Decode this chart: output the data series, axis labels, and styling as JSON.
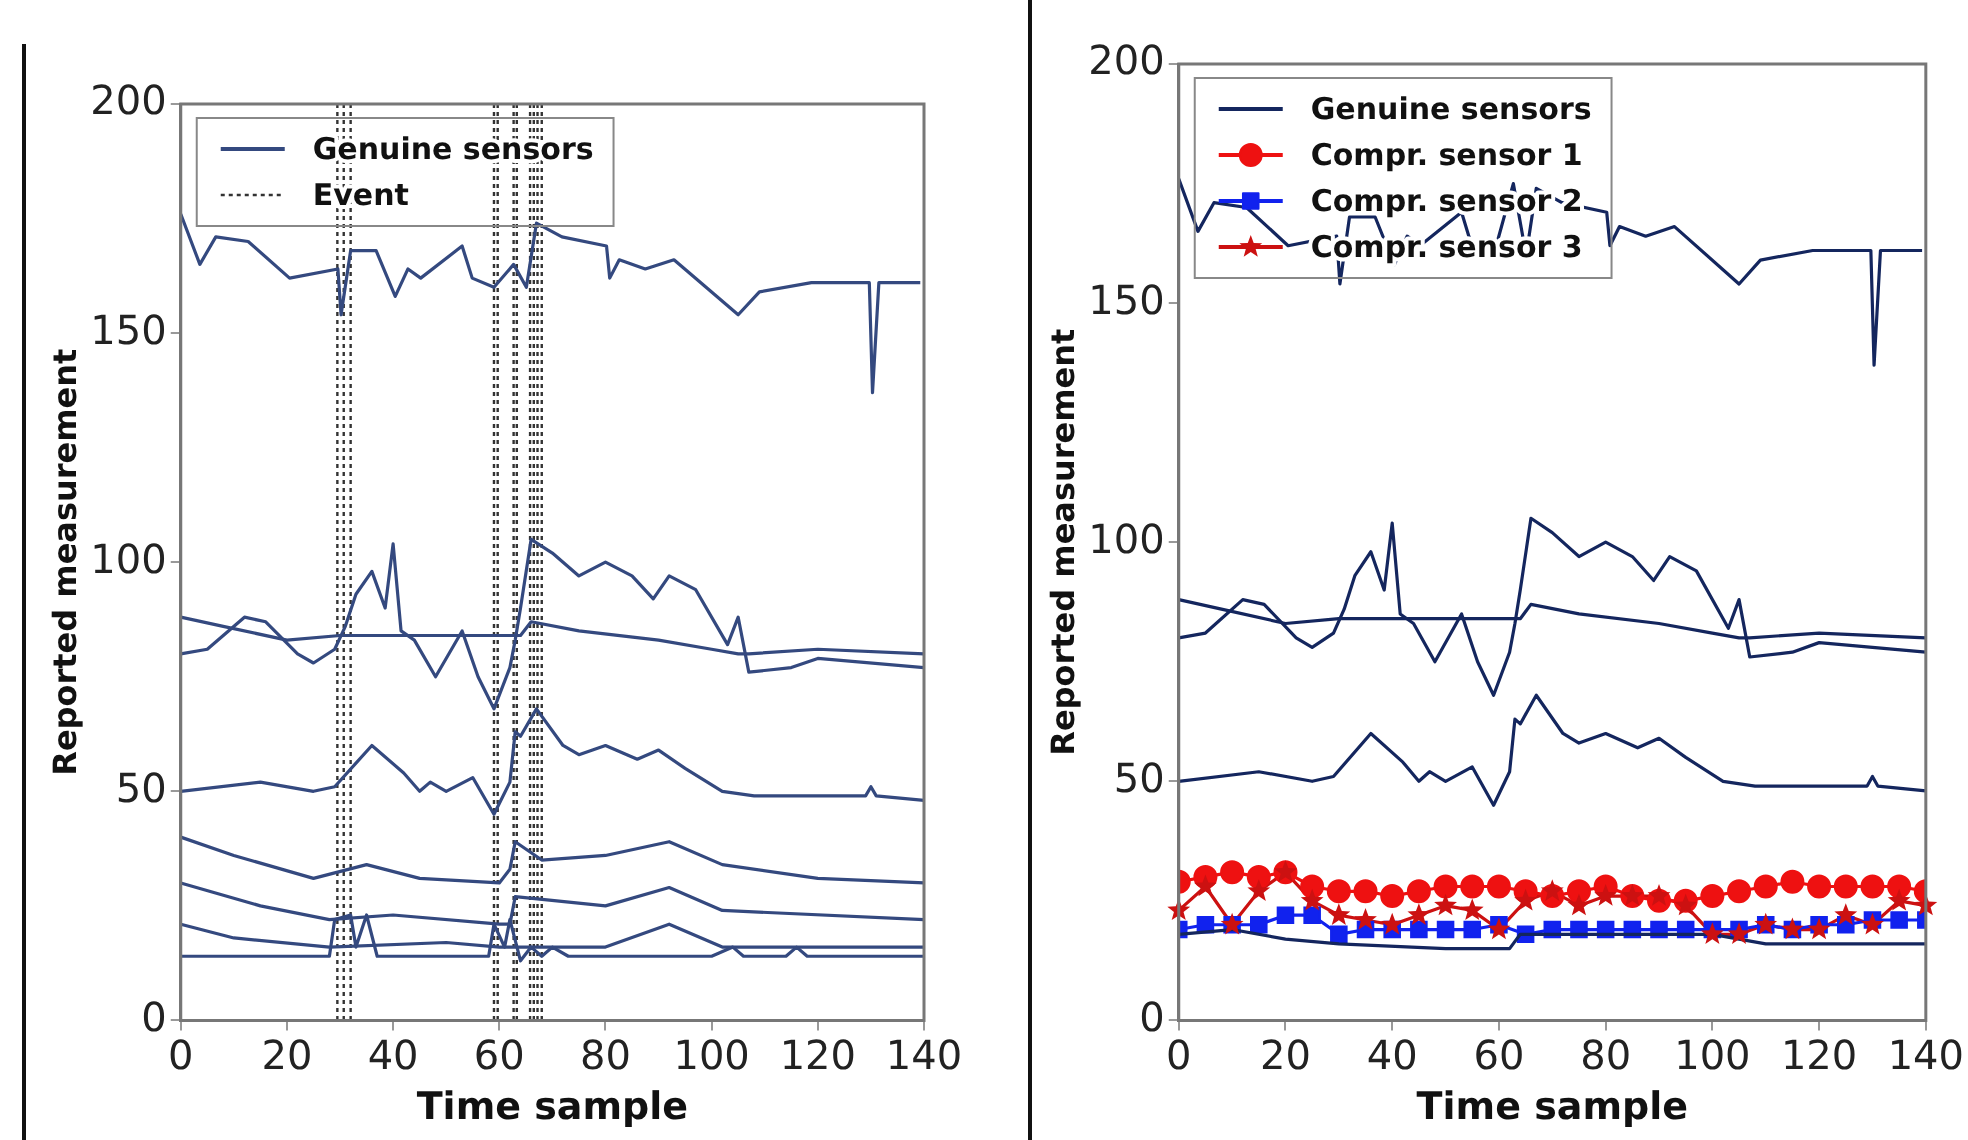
{
  "chart_data": [
    {
      "type": "line",
      "xlabel": "Time sample",
      "ylabel": "Reported measurement",
      "xlim": [
        0,
        140
      ],
      "xticks": [
        0,
        20,
        40,
        60,
        80,
        100,
        120,
        140
      ],
      "ylim": [
        0,
        200
      ],
      "yticks": [
        0,
        50,
        100,
        150,
        200
      ],
      "grid": false,
      "legend": "top left",
      "marker": "none",
      "series": [
        {
          "name": "Genuine sensors",
          "color": "#34497f",
          "x": [
            0,
            3.6,
            6.6,
            12.7,
            20.5,
            29.6,
            30.2,
            32,
            36.8,
            40.4,
            42.8,
            45.2,
            53,
            54.9,
            59,
            62.7,
            65.1,
            67,
            71.8,
            80.2,
            80.8,
            82.6,
            87.5,
            92.9,
            105,
            109,
            118.8,
            129.7,
            130.3,
            131.5,
            139.3
          ],
          "values": [
            176,
            165,
            171,
            170,
            162,
            164,
            154,
            168,
            168,
            158,
            164,
            162,
            169,
            162,
            160,
            165,
            160,
            174,
            171,
            169,
            162,
            166,
            164,
            166,
            154,
            159,
            161,
            161,
            137,
            161,
            161
          ]
        },
        {
          "color": "#34497f",
          "x": [
            0,
            8,
            20,
            30,
            40,
            50,
            60,
            64,
            66,
            75,
            90,
            100,
            105,
            107,
            120,
            140
          ],
          "values": [
            88,
            86,
            83,
            84,
            84,
            84,
            84,
            84,
            87,
            85,
            83,
            81,
            80,
            80,
            81,
            80
          ]
        },
        {
          "color": "#34497f",
          "x": [
            0,
            5,
            12,
            16,
            22,
            25,
            29,
            31,
            33,
            36,
            38.5,
            40,
            41.5,
            44,
            48,
            53,
            56,
            59,
            62,
            63,
            64,
            66,
            70,
            75,
            80,
            85,
            89,
            92,
            97,
            103,
            105,
            107,
            115,
            120,
            140
          ],
          "values": [
            80,
            81,
            88,
            87,
            80,
            78,
            81,
            86,
            93,
            98,
            90,
            104,
            85,
            83,
            75,
            85,
            75,
            68,
            77,
            83,
            90,
            105,
            102,
            97,
            100,
            97,
            92,
            97,
            94,
            82,
            88,
            76,
            77,
            79,
            77
          ]
        },
        {
          "color": "#34497f",
          "x": [
            0,
            15,
            25,
            29,
            36,
            42,
            45,
            47,
            50,
            55,
            59,
            62,
            63,
            64,
            67,
            72,
            75,
            80,
            86,
            90,
            95,
            102,
            108,
            120,
            129,
            130,
            131,
            140
          ],
          "values": [
            50,
            52,
            50,
            51,
            60,
            54,
            50,
            52,
            50,
            53,
            45,
            52,
            63,
            62,
            68,
            60,
            58,
            60,
            57,
            59,
            55,
            50,
            49,
            49,
            49,
            51,
            49,
            48
          ]
        },
        {
          "color": "#34497f",
          "x": [
            0,
            10,
            25,
            35,
            45,
            60,
            62,
            63,
            68,
            80,
            92,
            102,
            120,
            140
          ],
          "values": [
            40,
            36,
            31,
            34,
            31,
            30,
            33,
            39,
            35,
            36,
            39,
            34,
            31,
            30
          ]
        },
        {
          "color": "#34497f",
          "x": [
            0,
            15,
            28,
            40,
            60,
            62,
            63,
            80,
            92,
            102,
            140
          ],
          "values": [
            30,
            25,
            22,
            23,
            21,
            21,
            27,
            25,
            29,
            24,
            22
          ]
        },
        {
          "color": "#34497f",
          "x": [
            0,
            10,
            28,
            50,
            60,
            80,
            92,
            102,
            140
          ],
          "values": [
            21,
            18,
            16,
            17,
            16,
            16,
            21,
            16,
            16
          ]
        },
        {
          "color": "#34497f",
          "x": [
            0,
            28,
            29,
            32,
            33,
            35,
            37,
            58,
            59,
            61,
            62,
            64,
            66,
            68,
            70,
            73,
            100,
            104,
            106,
            114,
            116,
            118,
            140
          ],
          "values": [
            14,
            14,
            22,
            23,
            16,
            23,
            14,
            14,
            21,
            16,
            22,
            13,
            16,
            14,
            16,
            14,
            14,
            16,
            14,
            14,
            16,
            14,
            14
          ]
        }
      ],
      "ref_lines": [
        {
          "axis": "x",
          "value": 29.5,
          "label": "Event",
          "color": "#333333",
          "line_style": "dotted"
        },
        {
          "axis": "x",
          "value": 30.7,
          "color": "#333333",
          "line_style": "dotted"
        },
        {
          "axis": "x",
          "value": 32,
          "color": "#333333",
          "line_style": "dotted"
        },
        {
          "axis": "x",
          "value": 59,
          "color": "#333333",
          "line_style": "dotted"
        },
        {
          "axis": "x",
          "value": 59.7,
          "color": "#333333",
          "line_style": "dotted"
        },
        {
          "axis": "x",
          "value": 62.7,
          "color": "#333333",
          "line_style": "dotted"
        },
        {
          "axis": "x",
          "value": 63.3,
          "color": "#333333",
          "line_style": "dotted"
        },
        {
          "axis": "x",
          "value": 65.8,
          "color": "#333333",
          "line_style": "dotted"
        },
        {
          "axis": "x",
          "value": 66.5,
          "color": "#333333",
          "line_style": "dotted"
        },
        {
          "axis": "x",
          "value": 67.2,
          "color": "#333333",
          "line_style": "dotted"
        },
        {
          "axis": "x",
          "value": 68,
          "color": "#333333",
          "line_style": "dotted"
        }
      ]
    },
    {
      "type": "line",
      "xlabel": "Time sample",
      "ylabel": "Reported measurement",
      "xlim": [
        0,
        140
      ],
      "xticks": [
        0,
        20,
        40,
        60,
        80,
        100,
        120,
        140
      ],
      "ylim": [
        0,
        200
      ],
      "yticks": [
        0,
        50,
        100,
        150,
        200
      ],
      "grid": false,
      "legend": "top left",
      "x": [
        0,
        5,
        10,
        15,
        20,
        25,
        30,
        35,
        40,
        45,
        50,
        55,
        60,
        65,
        70,
        75,
        80,
        85,
        90,
        95,
        100,
        105,
        110,
        115,
        120,
        125,
        130,
        135,
        140
      ],
      "series": [
        {
          "name": "Genuine sensors",
          "color": "#14265e",
          "marker": "none",
          "x": [
            0,
            3.6,
            6.6,
            12.7,
            20.5,
            29.6,
            30.2,
            32,
            36.8,
            40.4,
            42.8,
            45.2,
            53,
            54.9,
            59,
            62.7,
            65.1,
            67,
            71.8,
            80.2,
            80.8,
            82.6,
            87.5,
            92.9,
            105,
            109,
            118.8,
            129.7,
            130.3,
            131.5,
            139.3
          ],
          "values": [
            176,
            165,
            171,
            170,
            162,
            164,
            154,
            168,
            168,
            158,
            164,
            162,
            169,
            162,
            160,
            175,
            160,
            174,
            171,
            169,
            162,
            166,
            164,
            166,
            154,
            159,
            161,
            161,
            137,
            161,
            161
          ]
        },
        {
          "color": "#14265e",
          "marker": "none",
          "x": [
            0,
            8,
            20,
            30,
            40,
            50,
            60,
            64,
            66,
            75,
            90,
            100,
            105,
            107,
            120,
            140
          ],
          "values": [
            88,
            86,
            83,
            84,
            84,
            84,
            84,
            84,
            87,
            85,
            83,
            81,
            80,
            80,
            81,
            80
          ]
        },
        {
          "color": "#14265e",
          "marker": "none",
          "x": [
            0,
            5,
            12,
            16,
            22,
            25,
            29,
            31,
            33,
            36,
            38.5,
            40,
            41.5,
            44,
            48,
            53,
            56,
            59,
            62,
            63,
            64,
            66,
            70,
            75,
            80,
            85,
            89,
            92,
            97,
            103,
            105,
            107,
            115,
            120,
            140
          ],
          "values": [
            80,
            81,
            88,
            87,
            80,
            78,
            81,
            86,
            93,
            98,
            90,
            104,
            85,
            83,
            75,
            85,
            75,
            68,
            77,
            83,
            90,
            105,
            102,
            97,
            100,
            97,
            92,
            97,
            94,
            82,
            88,
            76,
            77,
            79,
            77
          ]
        },
        {
          "color": "#14265e",
          "marker": "none",
          "x": [
            0,
            15,
            25,
            29,
            36,
            42,
            45,
            47,
            50,
            55,
            59,
            62,
            63,
            64,
            67,
            72,
            75,
            80,
            86,
            90,
            95,
            102,
            108,
            120,
            129,
            130,
            131,
            140
          ],
          "values": [
            50,
            52,
            50,
            51,
            60,
            54,
            50,
            52,
            50,
            53,
            45,
            52,
            63,
            62,
            68,
            60,
            58,
            60,
            57,
            59,
            55,
            50,
            49,
            49,
            49,
            51,
            49,
            48
          ]
        },
        {
          "color": "#14265e",
          "marker": "none",
          "x": [
            0,
            10,
            20,
            30,
            50,
            62,
            64,
            100,
            110,
            140
          ],
          "values": [
            18,
            19,
            17,
            16,
            15,
            15,
            18,
            18,
            16,
            16
          ]
        },
        {
          "name": "Compr. sensor 1",
          "color": "#ee1111",
          "marker": "circle",
          "values": [
            29,
            30,
            31,
            30,
            31,
            28,
            27,
            27,
            26,
            27,
            28,
            28,
            28,
            27,
            26,
            27,
            28,
            26,
            25,
            25,
            26,
            27,
            28,
            29,
            28,
            28,
            28,
            28,
            27
          ]
        },
        {
          "name": "Compr. sensor 2",
          "color": "#1122ee",
          "marker": "square",
          "values": [
            19,
            20,
            20,
            20,
            22,
            22,
            18,
            19,
            19,
            19,
            19,
            19,
            20,
            18,
            19,
            19,
            19,
            19,
            19,
            19,
            19,
            19,
            20,
            19,
            20,
            20,
            21,
            21,
            21
          ]
        },
        {
          "name": "Compr. sensor 3",
          "color": "#cc1111",
          "marker": "star",
          "values": [
            23,
            28,
            20,
            27,
            31,
            25,
            22,
            21,
            20,
            22,
            24,
            23,
            19,
            25,
            27,
            24,
            26,
            26,
            26,
            24,
            18,
            18,
            20,
            19,
            19,
            22,
            20,
            25,
            24
          ]
        }
      ]
    }
  ]
}
